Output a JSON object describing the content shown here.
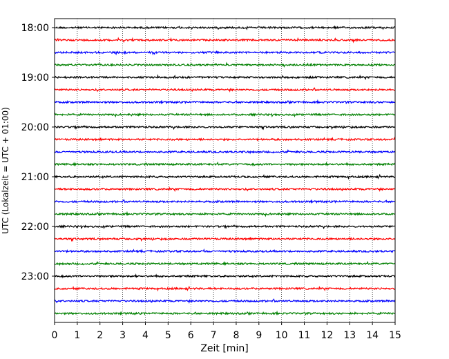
{
  "chart_data": {
    "type": "line",
    "title": "",
    "xlabel": "Zeit  [min]",
    "ylabel": "UTC (Lokalzeit = UTC + 01:00)",
    "xlim": [
      0,
      15
    ],
    "x_ticks": [
      "0",
      "1",
      "2",
      "3",
      "4",
      "5",
      "6",
      "7",
      "8",
      "9",
      "10",
      "11",
      "12",
      "13",
      "14",
      "15"
    ],
    "y_ticks": [
      "18:00",
      "19:00",
      "20:00",
      "21:00",
      "22:00",
      "23:00"
    ],
    "grid": "vertical dotted at each minute",
    "trace_interval_minutes": 15,
    "trace_start": "18:00",
    "traces": [
      {
        "start": "18:00",
        "color": "#000000"
      },
      {
        "start": "18:15",
        "color": "#ff0000"
      },
      {
        "start": "18:30",
        "color": "#0000ff"
      },
      {
        "start": "18:45",
        "color": "#008000"
      },
      {
        "start": "19:00",
        "color": "#000000"
      },
      {
        "start": "19:15",
        "color": "#ff0000"
      },
      {
        "start": "19:30",
        "color": "#0000ff"
      },
      {
        "start": "19:45",
        "color": "#008000"
      },
      {
        "start": "20:00",
        "color": "#000000"
      },
      {
        "start": "20:15",
        "color": "#ff0000"
      },
      {
        "start": "20:30",
        "color": "#0000ff"
      },
      {
        "start": "20:45",
        "color": "#008000"
      },
      {
        "start": "21:00",
        "color": "#000000"
      },
      {
        "start": "21:15",
        "color": "#ff0000"
      },
      {
        "start": "21:30",
        "color": "#0000ff"
      },
      {
        "start": "21:45",
        "color": "#008000"
      },
      {
        "start": "22:00",
        "color": "#000000"
      },
      {
        "start": "22:15",
        "color": "#ff0000"
      },
      {
        "start": "22:30",
        "color": "#0000ff"
      },
      {
        "start": "22:45",
        "color": "#008000"
      },
      {
        "start": "23:00",
        "color": "#000000"
      },
      {
        "start": "23:15",
        "color": "#ff0000"
      },
      {
        "start": "23:30",
        "color": "#0000ff"
      },
      {
        "start": "23:45",
        "color": "#008000"
      }
    ]
  }
}
